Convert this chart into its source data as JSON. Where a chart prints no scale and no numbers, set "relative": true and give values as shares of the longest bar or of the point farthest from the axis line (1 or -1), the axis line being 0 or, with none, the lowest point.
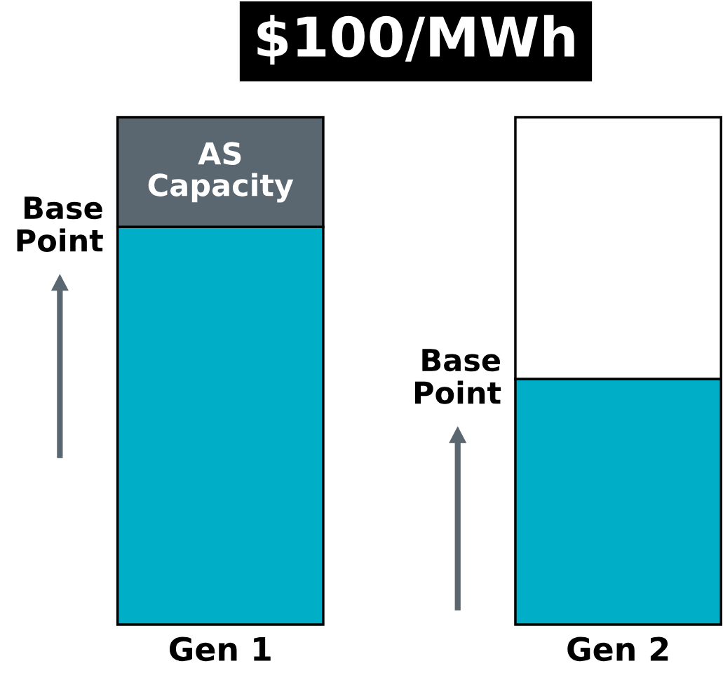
{
  "chart_data": {
    "type": "bar",
    "title": "$100/MWh",
    "relative": true,
    "stacked": true,
    "tick_labels": "x",
    "categories": [
      "Gen 1",
      "Gen 2"
    ],
    "series": [
      {
        "name": "Base Point",
        "color": "#00aec7",
        "values": [
          0.784,
          0.484
        ]
      },
      {
        "name": "AS Capacity",
        "color": "#5b6770",
        "values": [
          0.216,
          null
        ]
      },
      {
        "color": "#ffffff",
        "values": [
          null,
          0.516
        ]
      }
    ],
    "annotations": [
      "Base Point"
    ]
  }
}
